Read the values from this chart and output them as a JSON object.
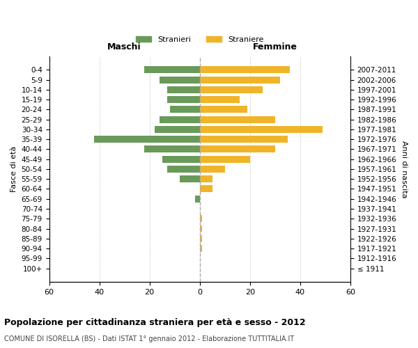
{
  "age_groups": [
    "100+",
    "95-99",
    "90-94",
    "85-89",
    "80-84",
    "75-79",
    "70-74",
    "65-69",
    "60-64",
    "55-59",
    "50-54",
    "45-49",
    "40-44",
    "35-39",
    "30-34",
    "25-29",
    "20-24",
    "15-19",
    "10-14",
    "5-9",
    "0-4"
  ],
  "birth_years": [
    "≤ 1911",
    "1912-1916",
    "1917-1921",
    "1922-1926",
    "1927-1931",
    "1932-1936",
    "1937-1941",
    "1942-1946",
    "1947-1951",
    "1952-1956",
    "1957-1961",
    "1962-1966",
    "1967-1971",
    "1972-1976",
    "1977-1981",
    "1982-1986",
    "1987-1991",
    "1992-1996",
    "1997-2001",
    "2002-2006",
    "2007-2011"
  ],
  "maschi": [
    0,
    0,
    0,
    0,
    0,
    0,
    0,
    2,
    0,
    8,
    13,
    15,
    22,
    42,
    18,
    16,
    12,
    13,
    13,
    16,
    22
  ],
  "femmine": [
    0,
    0,
    1,
    1,
    1,
    1,
    0,
    0,
    5,
    5,
    10,
    20,
    30,
    35,
    49,
    30,
    19,
    16,
    25,
    32,
    36
  ],
  "color_maschi": "#6a9a5a",
  "color_femmine": "#f0b429",
  "title": "Popolazione per cittadinanza straniera per età e sesso - 2012",
  "subtitle": "COMUNE DI ISORELLA (BS) - Dati ISTAT 1° gennaio 2012 - Elaborazione TUTTITALIA.IT",
  "xlabel_left": "Maschi",
  "xlabel_right": "Femmine",
  "ylabel_left": "Fasce di età",
  "ylabel_right": "Anni di nascita",
  "xlim": 60,
  "legend_stranieri": "Stranieri",
  "legend_straniere": "Straniere",
  "background_color": "#ffffff",
  "grid_color": "#cccccc"
}
